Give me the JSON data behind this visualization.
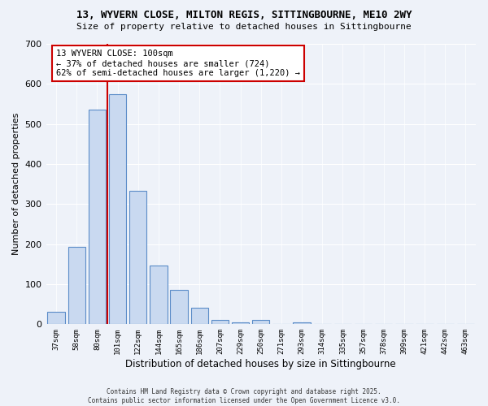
{
  "title1": "13, WYVERN CLOSE, MILTON REGIS, SITTINGBOURNE, ME10 2WY",
  "title2": "Size of property relative to detached houses in Sittingbourne",
  "xlabel": "Distribution of detached houses by size in Sittingbourne",
  "ylabel": "Number of detached properties",
  "categories": [
    "37sqm",
    "58sqm",
    "80sqm",
    "101sqm",
    "122sqm",
    "144sqm",
    "165sqm",
    "186sqm",
    "207sqm",
    "229sqm",
    "250sqm",
    "271sqm",
    "293sqm",
    "314sqm",
    "335sqm",
    "357sqm",
    "378sqm",
    "399sqm",
    "421sqm",
    "442sqm",
    "463sqm"
  ],
  "values": [
    32,
    193,
    535,
    575,
    333,
    147,
    86,
    41,
    11,
    5,
    10,
    0,
    5,
    0,
    0,
    0,
    0,
    0,
    0,
    0,
    0
  ],
  "bar_color": "#c9d9f0",
  "bar_edge_color": "#5b8cc8",
  "vline_color": "#cc0000",
  "annotation_text": "13 WYVERN CLOSE: 100sqm\n← 37% of detached houses are smaller (724)\n62% of semi-detached houses are larger (1,220) →",
  "annotation_box_color": "#ffffff",
  "annotation_box_edge": "#cc0000",
  "ylim": [
    0,
    700
  ],
  "yticks": [
    0,
    100,
    200,
    300,
    400,
    500,
    600,
    700
  ],
  "footer1": "Contains HM Land Registry data © Crown copyright and database right 2025.",
  "footer2": "Contains public sector information licensed under the Open Government Licence v3.0.",
  "bg_color": "#eef2f9"
}
